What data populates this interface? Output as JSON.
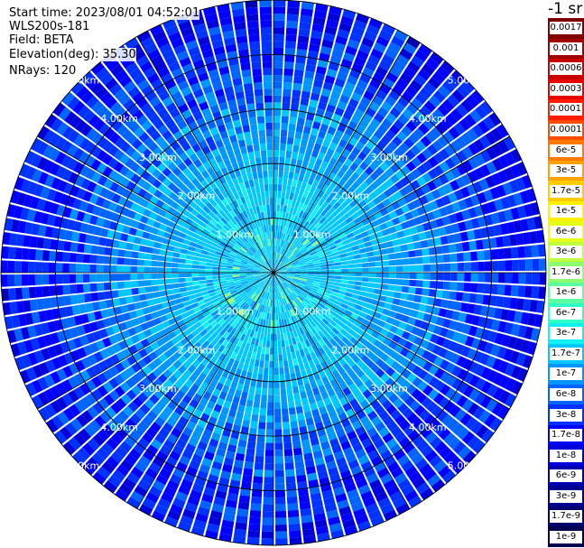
{
  "info": {
    "start_time": "Start time: 2023/08/01 04:52:01",
    "instrument": "WLS200s-181",
    "field": "Field: BETA",
    "elevation": "Elevation(deg): 35.30",
    "nrays": "NRays: 120"
  },
  "colorbar": {
    "units": "-1 sr",
    "labels": [
      "0.0017",
      "0.001",
      "0.0006",
      "0.0003",
      "0.00017",
      "0.0001",
      "6e-5",
      "3e-5",
      "1.7e-5",
      "1e-5",
      "6e-6",
      "3e-6",
      "1.7e-6",
      "1e-6",
      "6e-7",
      "3e-7",
      "1.7e-7",
      "1e-7",
      "6e-8",
      "3e-8",
      "1.7e-8",
      "1e-8",
      "6e-9",
      "3e-9",
      "1.7e-9",
      "1e-9"
    ],
    "colors": [
      "#800000",
      "#a00000",
      "#c80000",
      "#e60000",
      "#ff1a00",
      "#ff4a00",
      "#ff7a00",
      "#ffa200",
      "#ffcc00",
      "#fff000",
      "#e6ff18",
      "#c0ff40",
      "#8cff70",
      "#5cffa0",
      "#30ffc8",
      "#10f0f0",
      "#00c8ff",
      "#0096ff",
      "#0064ff",
      "#0032ff",
      "#0000ff",
      "#0000d8",
      "#0000b0",
      "#000090",
      "#000070",
      "#000050"
    ]
  },
  "chart_data": {
    "type": "heatmap",
    "projection": "polar PPI",
    "field": "BETA",
    "elevation_deg": 35.3,
    "n_rays": 120,
    "range_rings_km": [
      1,
      2,
      3,
      4,
      5
    ],
    "ring_labels": [
      "1.00km",
      "2.00km",
      "3.00km",
      "4.00km",
      "5.00km"
    ],
    "max_range_km": 5.0,
    "radial_spokes_deg": [
      0,
      30,
      60,
      90,
      120,
      150,
      180,
      210,
      240,
      270,
      300,
      330
    ],
    "value_profile_by_range_km": [
      {
        "range_km": 0.5,
        "value": "1.7e-7"
      },
      {
        "range_km": 1.5,
        "value": "1.7e-7"
      },
      {
        "range_km": 2.5,
        "value": "1e-7"
      },
      {
        "range_km": 3.2,
        "value": "6e-8"
      },
      {
        "range_km": 4.0,
        "value": "3e-8"
      },
      {
        "range_km": 5.0,
        "value": "1.7e-8"
      }
    ]
  }
}
